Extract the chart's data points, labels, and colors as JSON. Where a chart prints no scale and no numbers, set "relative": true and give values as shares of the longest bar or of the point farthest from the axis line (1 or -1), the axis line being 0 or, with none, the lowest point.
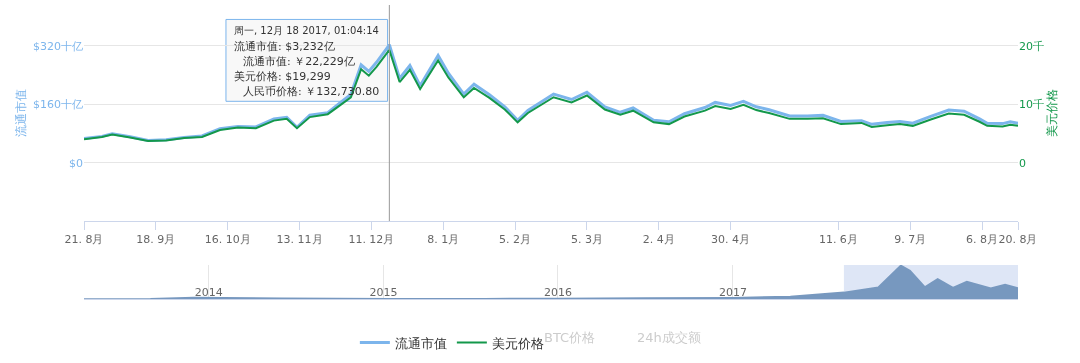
{
  "chart_data": [
    {
      "type": "line",
      "ylabel": "流通市值",
      "y2label": "美元价格",
      "x": [
        "2017-08-21",
        "2017-08-28",
        "2017-09-01",
        "2017-09-08",
        "2017-09-15",
        "2017-09-22",
        "2017-09-29",
        "2017-10-06",
        "2017-10-13",
        "2017-10-20",
        "2017-10-27",
        "2017-11-03",
        "2017-11-08",
        "2017-11-12",
        "2017-11-17",
        "2017-11-24",
        "2017-11-29",
        "2017-12-03",
        "2017-12-07",
        "2017-12-10",
        "2017-12-13",
        "2017-12-18",
        "2017-12-22",
        "2017-12-26",
        "2017-12-30",
        "2018-01-06",
        "2018-01-10",
        "2018-01-16",
        "2018-01-20",
        "2018-01-26",
        "2018-02-01",
        "2018-02-06",
        "2018-02-10",
        "2018-02-20",
        "2018-02-27",
        "2018-03-05",
        "2018-03-12",
        "2018-03-18",
        "2018-03-23",
        "2018-03-31",
        "2018-04-06",
        "2018-04-12",
        "2018-04-20",
        "2018-04-24",
        "2018-04-30",
        "2018-05-05",
        "2018-05-10",
        "2018-05-15",
        "2018-05-23",
        "2018-05-30",
        "2018-06-05",
        "2018-06-12",
        "2018-06-20",
        "2018-06-24",
        "2018-06-30",
        "2018-07-05",
        "2018-07-10",
        "2018-07-17",
        "2018-07-24",
        "2018-07-30",
        "2018-08-05",
        "2018-08-08",
        "2018-08-14",
        "2018-08-17",
        "2018-08-20"
      ],
      "series": [
        {
          "name": "流通市值",
          "color": "#7cb5ec",
          "values": [
            66,
            72,
            79,
            71,
            61,
            63,
            69,
            73,
            93,
            99,
            98,
            120,
            124,
            97,
            130,
            137,
            165,
            187,
            268,
            250,
            275,
            323,
            231,
            266,
            211,
            294,
            245,
            188,
            215,
            186,
            153,
            116,
            143,
            188,
            173,
            193,
            153,
            138,
            150,
            116,
            112,
            134,
            151,
            165,
            157,
            168,
            153,
            145,
            128,
            128,
            130,
            113,
            115,
            105,
            110,
            113,
            108,
            127,
            144,
            141,
            120,
            108,
            107,
            112,
            108
          ]
        },
        {
          "name": "美元价格",
          "color": "#13984b",
          "axis": "y2",
          "values": [
            4.0,
            4.4,
            4.8,
            4.3,
            3.7,
            3.8,
            4.2,
            4.4,
            5.6,
            6.0,
            5.9,
            7.2,
            7.5,
            5.9,
            7.8,
            8.3,
            9.9,
            11.2,
            16.0,
            14.9,
            16.4,
            19.3,
            13.8,
            15.9,
            12.6,
            17.5,
            14.6,
            11.2,
            12.8,
            11.1,
            9.1,
            6.9,
            8.5,
            11.2,
            10.3,
            11.5,
            9.1,
            8.2,
            8.9,
            6.9,
            6.6,
            7.9,
            8.9,
            9.7,
            9.2,
            9.9,
            9.0,
            8.5,
            7.5,
            7.5,
            7.6,
            6.6,
            6.8,
            6.1,
            6.4,
            6.6,
            6.3,
            7.4,
            8.4,
            8.2,
            7.0,
            6.3,
            6.2,
            6.5,
            6.3
          ]
        }
      ],
      "xlim": [
        "2017-08-21",
        "2018-08-20"
      ],
      "xticks": [
        {
          "value": "2017-08-21",
          "label": "21. 8月"
        },
        {
          "value": "2017-09-18",
          "label": "18. 9月"
        },
        {
          "value": "2017-10-16",
          "label": "16. 10月"
        },
        {
          "value": "2017-11-13",
          "label": "13. 11月"
        },
        {
          "value": "2017-12-11",
          "label": "11. 12月"
        },
        {
          "value": "2018-01-08",
          "label": "8. 1月"
        },
        {
          "value": "2018-02-05",
          "label": "5. 2月"
        },
        {
          "value": "2018-03-05",
          "label": "5. 3月"
        },
        {
          "value": "2018-04-02",
          "label": "2. 4月"
        },
        {
          "value": "2018-04-30",
          "label": "30. 4月"
        },
        {
          "value": "2018-06-11",
          "label": "11. 6月"
        },
        {
          "value": "2018-07-09",
          "label": "9. 7月"
        },
        {
          "value": "2018-08-06",
          "label": "6. 8月"
        },
        {
          "value": "2018-08-20",
          "label": "20. 8月"
        }
      ],
      "ylim": [
        -160,
        432
      ],
      "yticks": [
        {
          "value": 0,
          "label": "$0"
        },
        {
          "value": 160,
          "label": "$160十亿"
        },
        {
          "value": 320,
          "label": "$320十亿"
        }
      ],
      "y2lim": [
        -10,
        27
      ],
      "y2ticks": [
        0,
        {
          "value": 10,
          "label": "10千"
        },
        {
          "value": 20,
          "label": "20千"
        }
      ],
      "grid": "y",
      "legend": "bottom",
      "marker": "none",
      "ref_lines": [
        {
          "axis": "x",
          "value": "2017-12-18",
          "color": "#999999"
        }
      ],
      "annotations": [
        "周一, 12月 18 2017, 01:04:14",
        "流通市值: $3,232亿",
        "流通市值: ￥22,229亿",
        "美元价格: $19,299",
        "人民币价格: ￥132,730.80",
        "BTC价格",
        "24h成交额"
      ]
    },
    {
      "type": "area",
      "relative": true,
      "x": [
        "2013-04-15",
        "2013-09-01",
        "2013-12-01",
        "2014-02-01",
        "2014-06-01",
        "2015-01-15",
        "2015-08-01",
        "2016-01-01",
        "2016-07-01",
        "2017-01-01",
        "2017-05-01",
        "2017-08-21",
        "2017-11-01",
        "2017-12-18",
        "2018-01-06",
        "2018-02-06",
        "2018-03-05",
        "2018-04-06",
        "2018-05-05",
        "2018-06-24",
        "2018-07-24",
        "2018-08-20"
      ],
      "series": [
        {
          "color": "#7798bf",
          "values": [
            0,
            0.01,
            0.05,
            0.04,
            0.025,
            0.01,
            0.012,
            0.02,
            0.03,
            0.04,
            0.08,
            0.2,
            0.35,
            1,
            0.85,
            0.36,
            0.6,
            0.34,
            0.52,
            0.32,
            0.43,
            0.33
          ]
        }
      ],
      "xlim": [
        "2013-04-15",
        "2018-08-20"
      ],
      "xticks": [
        {
          "value": "2014-01-01",
          "label": "2014"
        },
        {
          "value": "2015-01-01",
          "label": "2015"
        },
        {
          "value": "2016-01-01",
          "label": "2016"
        },
        {
          "value": "2017-01-01",
          "label": "2017"
        }
      ],
      "grid": "x",
      "bands": [
        {
          "axis": "x",
          "from": "2017-08-21",
          "to": "2018-08-20",
          "color": "#c8d6f0"
        }
      ]
    }
  ]
}
